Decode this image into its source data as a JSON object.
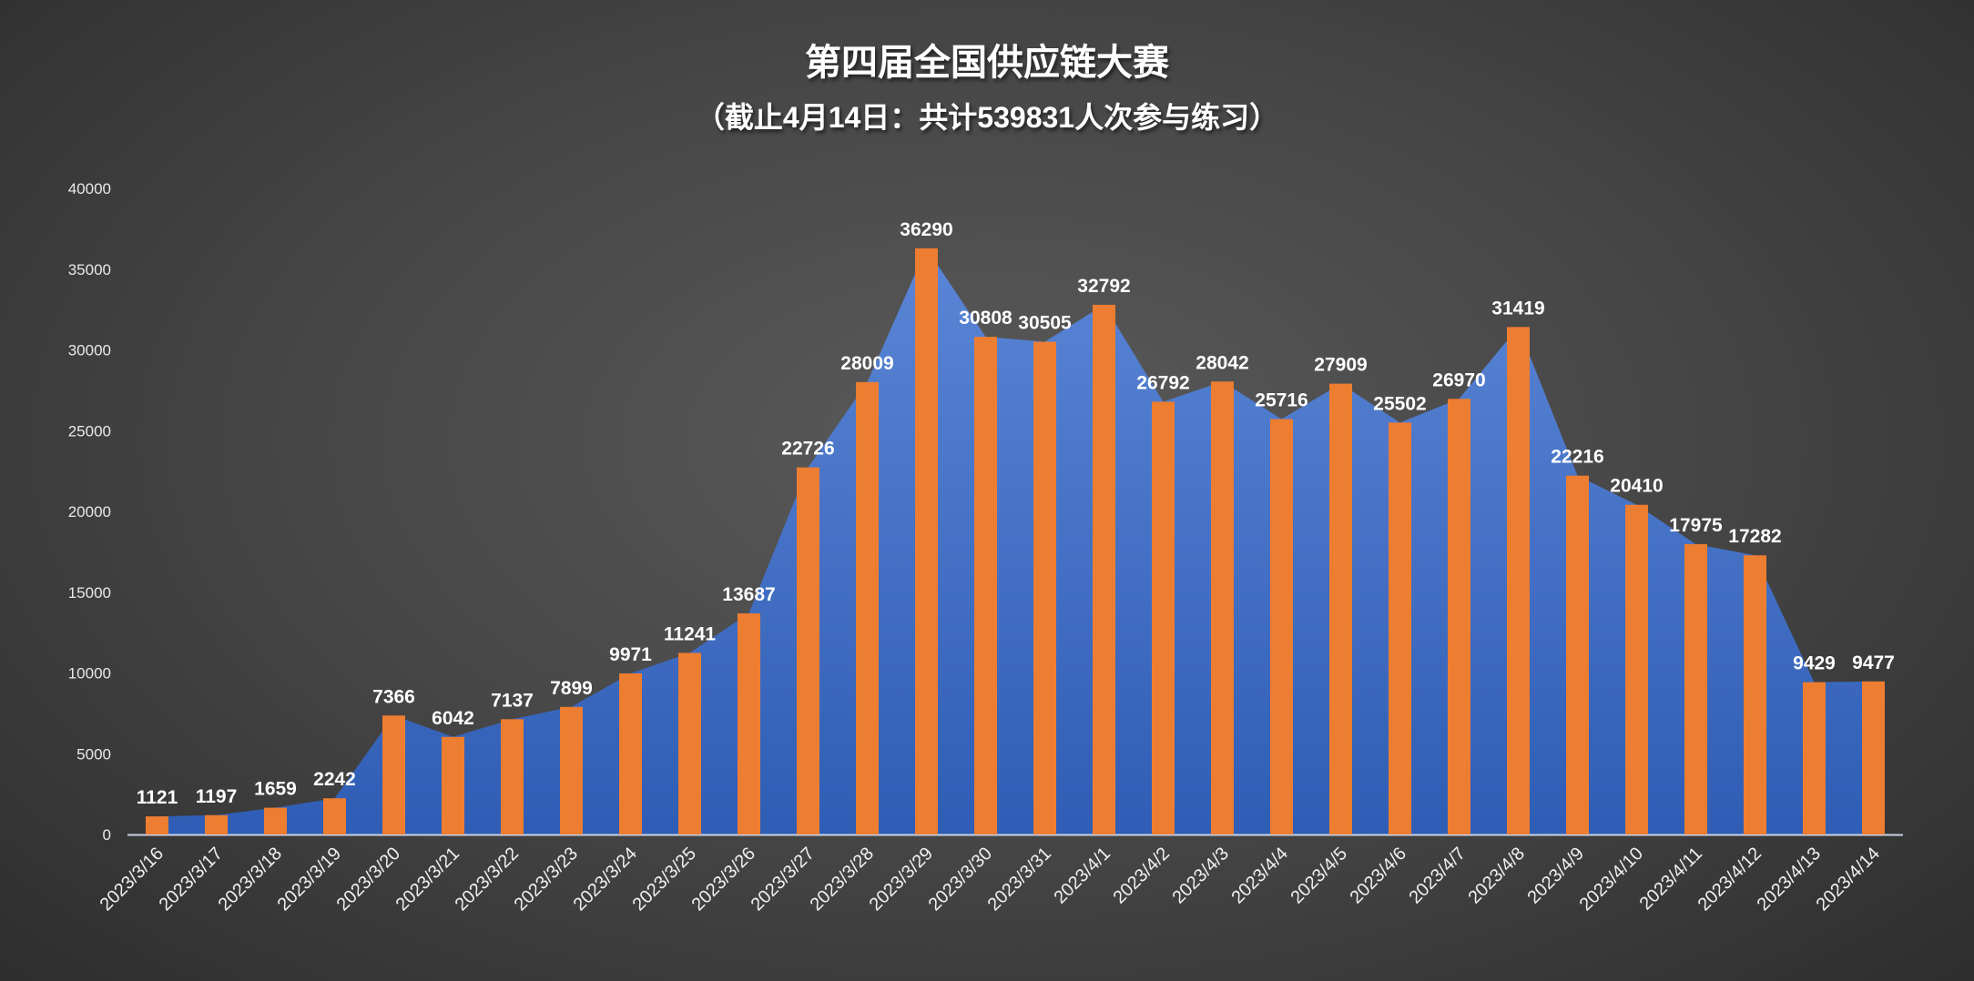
{
  "chart_data": {
    "type": "bar",
    "title": "第四届全国供应链大赛",
    "subtitle": "（截止4月14日：共计539831人次参与练习）",
    "categories": [
      "2023/3/16",
      "2023/3/17",
      "2023/3/18",
      "2023/3/19",
      "2023/3/20",
      "2023/3/21",
      "2023/3/22",
      "2023/3/23",
      "2023/3/24",
      "2023/3/25",
      "2023/3/26",
      "2023/3/27",
      "2023/3/28",
      "2023/3/29",
      "2023/3/30",
      "2023/3/31",
      "2023/4/1",
      "2023/4/2",
      "2023/4/3",
      "2023/4/4",
      "2023/4/5",
      "2023/4/6",
      "2023/4/7",
      "2023/4/8",
      "2023/4/9",
      "2023/4/10",
      "2023/4/11",
      "2023/4/12",
      "2023/4/13",
      "2023/4/14"
    ],
    "series": [
      {
        "name": "area",
        "type": "area",
        "color": "#4472C4",
        "values": [
          1121,
          1197,
          1659,
          2242,
          7366,
          6042,
          7137,
          7899,
          9971,
          11241,
          13687,
          22726,
          28009,
          36290,
          30808,
          30505,
          32792,
          26792,
          28042,
          25716,
          27909,
          25502,
          26970,
          31419,
          22216,
          20410,
          17975,
          17282,
          9429,
          9477
        ]
      },
      {
        "name": "bar",
        "type": "bar",
        "color": "#ED7D31",
        "values": [
          1121,
          1197,
          1659,
          2242,
          7366,
          6042,
          7137,
          7899,
          9971,
          11241,
          13687,
          22726,
          28009,
          36290,
          30808,
          30505,
          32792,
          26792,
          28042,
          25716,
          27909,
          25502,
          26970,
          31419,
          22216,
          20410,
          17975,
          17282,
          9429,
          9477
        ]
      }
    ],
    "ylim": [
      0,
      40000
    ],
    "yticks": [
      "0",
      "5000",
      "10000",
      "15000",
      "20000",
      "25000",
      "30000",
      "35000",
      "40000"
    ],
    "xlabel": "",
    "ylabel": "",
    "grid": false,
    "legend": "none"
  }
}
